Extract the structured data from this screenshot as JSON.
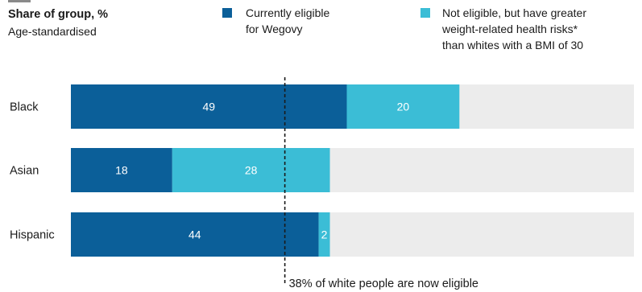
{
  "header": {
    "title": "Share of group, %",
    "subtitle": "Age-standardised"
  },
  "legend": [
    {
      "lines": [
        "Currently eligible",
        "for Wegovy"
      ],
      "color": "#0b5f99"
    },
    {
      "lines": [
        "Not eligible, but have greater",
        "weight-related health risks*",
        "than whites with a BMI of 30"
      ],
      "color": "#3bbdd6"
    }
  ],
  "chart_data": {
    "type": "bar",
    "orientation": "horizontal",
    "stacked": true,
    "categories": [
      "Black",
      "Asian",
      "Hispanic"
    ],
    "series": [
      {
        "name": "Currently eligible for Wegovy",
        "values": [
          49,
          18,
          44
        ],
        "color": "#0b5f99"
      },
      {
        "name": "Not eligible, but have greater weight-related health risks* than whites with a BMI of 30",
        "values": [
          20,
          28,
          2
        ],
        "color": "#3bbdd6"
      }
    ],
    "value_labels": [
      [
        "49",
        "18",
        "44"
      ],
      [
        "20",
        "28",
        "2"
      ]
    ],
    "xlim": [
      0,
      100
    ],
    "background_color": "#ececec",
    "reference_line": {
      "value": 38,
      "label": "38% of white people are now eligible"
    },
    "grid": false
  }
}
